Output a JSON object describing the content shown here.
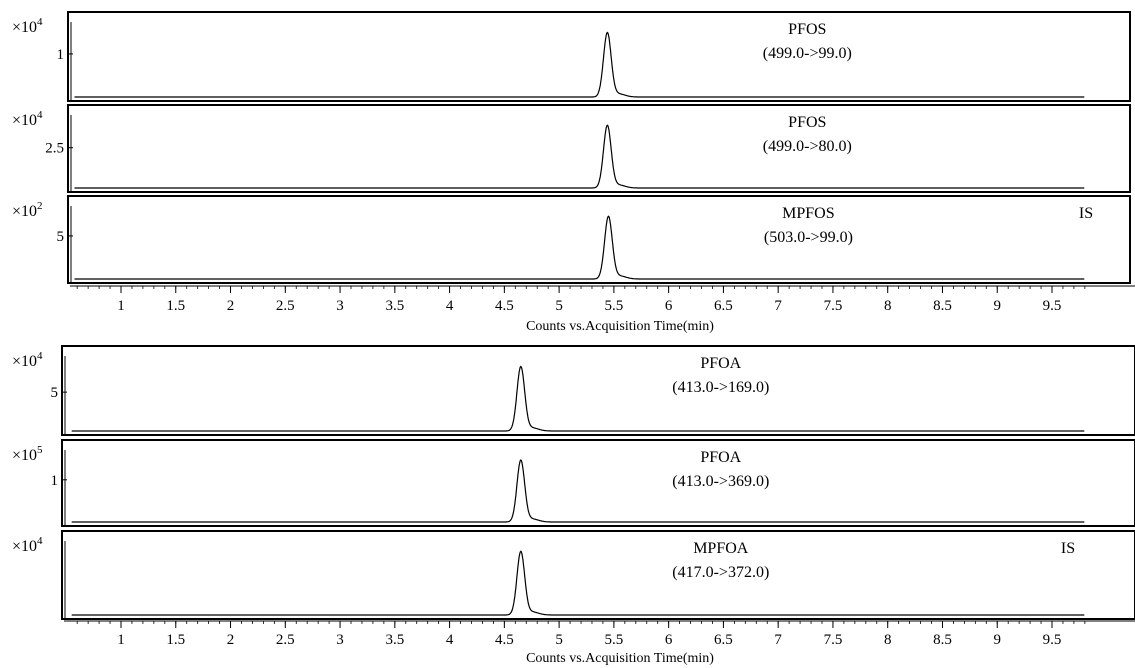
{
  "chart_data": [
    {
      "type": "line",
      "xlabel": "Counts vs.Acquisition Time(min)",
      "xlim": [
        0.55,
        9.8
      ],
      "x_ticks": [
        "1",
        "1.5",
        "2",
        "2.5",
        "3",
        "3.5",
        "4",
        "4.5",
        "5",
        "5.5",
        "6",
        "6.5",
        "7",
        "7.5",
        "8",
        "8.5",
        "9",
        "9.5"
      ],
      "panels": [
        {
          "name": "PFOS",
          "transition": "(499.0->99.0)",
          "multiplier_base": "×10",
          "multiplier_exp": "4",
          "ytick": "1",
          "ytick_value": 10000,
          "peak_rt": 5.44,
          "peak_height": 14800,
          "is_label": ""
        },
        {
          "name": "PFOS",
          "transition": "(499.0->80.0)",
          "multiplier_base": "×10",
          "multiplier_exp": "4",
          "ytick": "2.5",
          "ytick_value": 25000,
          "peak_rt": 5.44,
          "peak_height": 38500,
          "is_label": ""
        },
        {
          "name": "MPFOS",
          "transition": "(503.0->99.0)",
          "multiplier_base": "×10",
          "multiplier_exp": "2",
          "ytick": "5",
          "ytick_value": 500,
          "peak_rt": 5.45,
          "peak_height": 720,
          "is_label": "IS"
        }
      ]
    },
    {
      "type": "line",
      "xlabel": "Counts vs.Acquisition Time(min)",
      "xlim": [
        0.55,
        9.8
      ],
      "x_ticks": [
        "1",
        "1.5",
        "2",
        "2.5",
        "3",
        "3.5",
        "4",
        "4.5",
        "5",
        "5.5",
        "6",
        "6.5",
        "7",
        "7.5",
        "8",
        "8.5",
        "9",
        "9.5"
      ],
      "panels": [
        {
          "name": "PFOA",
          "transition": "(413.0->169.0)",
          "multiplier_base": "×10",
          "multiplier_exp": "4",
          "ytick": "5",
          "ytick_value": 50000,
          "peak_rt": 4.65,
          "peak_height": 82000,
          "is_label": ""
        },
        {
          "name": "PFOA",
          "transition": "(413.0->369.0)",
          "multiplier_base": "×10",
          "multiplier_exp": "5",
          "ytick": "1",
          "ytick_value": 100000,
          "peak_rt": 4.65,
          "peak_height": 145000,
          "is_label": ""
        },
        {
          "name": "MPFOA",
          "transition": "(417.0->372.0)",
          "multiplier_base": "×10",
          "multiplier_exp": "4",
          "ytick": "",
          "ytick_value": 0,
          "peak_rt": 4.65,
          "peak_height": 50000,
          "is_label": "IS"
        }
      ]
    }
  ]
}
